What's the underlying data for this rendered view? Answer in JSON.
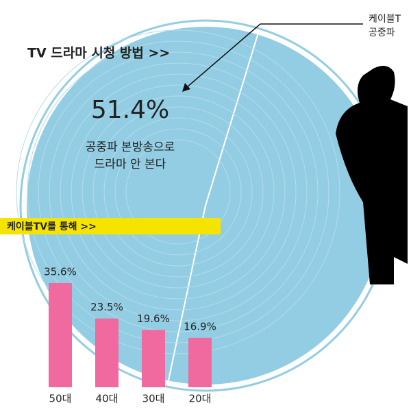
{
  "chart_data": [
    {
      "type": "pie",
      "title": "TV 드라마 시청 방법 >>",
      "values": [
        51.4,
        48.6
      ],
      "value_labels": [
        "51.4%",
        null
      ],
      "annotations": [
        "공중파 본방송으로",
        "드라마 안 본다",
        "케이블T",
        "공중파"
      ],
      "colors": [
        "#93cde3",
        "#93cde3"
      ]
    },
    {
      "type": "bar",
      "title": "케이블TV를 통해 >>",
      "categories": [
        "50대",
        "40대",
        "30대",
        "20대"
      ],
      "values": [
        35.6,
        23.5,
        19.6,
        16.9
      ],
      "value_labels": [
        "35.6%",
        "23.5%",
        "19.6%",
        "16.9%"
      ],
      "color": "#f06aa0"
    }
  ]
}
